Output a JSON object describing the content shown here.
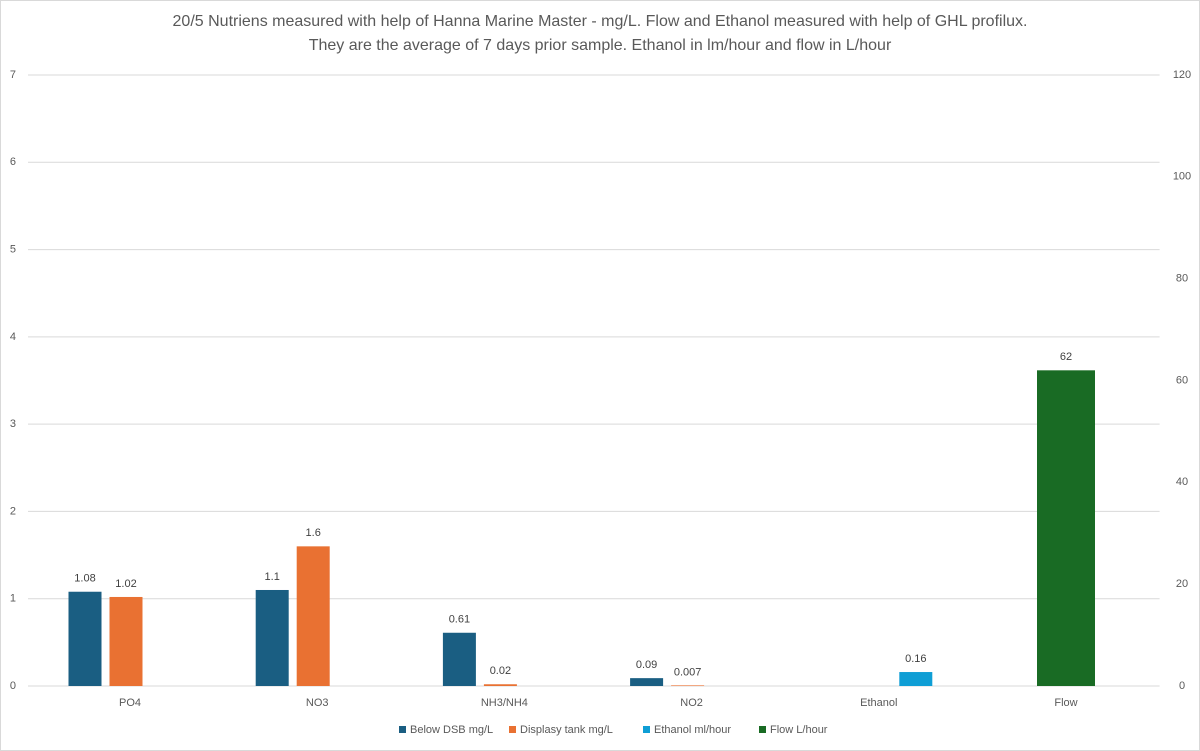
{
  "chart_data": {
    "type": "bar",
    "title": [
      "20/5 Nutriens measured with help of Hanna Marine Master - mg/L. Flow and Ethanol measured with help of GHL profilux.",
      "They are the average of 7 days prior sample. Ethanol in lm/hour and flow in L/hour"
    ],
    "categories": [
      "PO4",
      "NO3",
      "NH3/NH4",
      "NO2",
      "Ethanol",
      "Flow"
    ],
    "series": [
      {
        "name": "Below DSB mg/L",
        "color": "#1a5e82",
        "values": [
          1.08,
          1.1,
          0.61,
          0.09,
          null,
          null
        ]
      },
      {
        "name": "Displasy tank mg/L",
        "color": "#e97132",
        "values": [
          1.02,
          1.6,
          0.02,
          0.007,
          null,
          null
        ]
      },
      {
        "name": "Ethanol ml/hour",
        "color": "#0f9ed5",
        "values": [
          null,
          null,
          null,
          null,
          0.16,
          null
        ]
      },
      {
        "name": "Flow L/hour",
        "color": "#196b24",
        "axis": "y2",
        "values": [
          null,
          null,
          null,
          null,
          null,
          62
        ]
      }
    ],
    "ylim": [
      0,
      7
    ],
    "yticks": [
      0,
      1,
      2,
      3,
      4,
      5,
      6,
      7
    ],
    "y2lim": [
      0,
      120
    ],
    "y2ticks": [
      0,
      20,
      40,
      60,
      80,
      100,
      120
    ],
    "grid": true,
    "legend": "bottom"
  }
}
